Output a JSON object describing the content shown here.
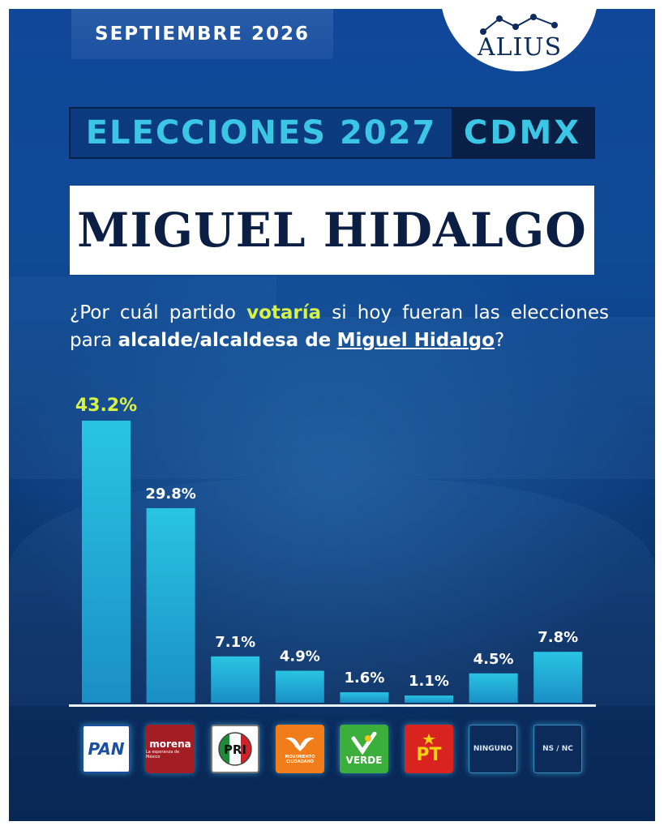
{
  "header": {
    "date": "SEPTIEMBRE 2026",
    "brand": "ALIUS"
  },
  "title": {
    "left": "ELECCIONES 2027",
    "right": "CDMX",
    "name": "MIGUEL HIDALGO"
  },
  "question": {
    "p1": "¿Por cuál partido ",
    "hl": "votaría",
    "p2": " si hoy fueran las elecciones para ",
    "b1": "alcalde/alcaldesa de",
    "p3": " ",
    "u1": "Miguel Hidalgo",
    "p4": "?"
  },
  "logos": {
    "pan": "PAN",
    "morena": "morena",
    "morena_sub": "La esperanza de México",
    "pri": "PRI",
    "mc": "MOVIMIENTO CIUDADANO",
    "verde": "VERDE",
    "pt": "PT",
    "ninguno": "NINGUNO",
    "nsnc": "NS / NC"
  },
  "colors": {
    "bar_top": "#29c4e3",
    "bar_bottom": "#1a8fc5",
    "label": "#ffffff",
    "highlight_label": "#d6f24a"
  },
  "chart_data": {
    "type": "bar",
    "categories": [
      "PAN",
      "morena",
      "PRI",
      "MOVIMIENTO CIUDADANO",
      "VERDE",
      "PT",
      "NINGUNO",
      "NS / NC"
    ],
    "values": [
      43.2,
      29.8,
      7.1,
      4.9,
      1.6,
      1.1,
      4.5,
      7.8
    ],
    "labels": [
      "43.2%",
      "29.8%",
      "7.1%",
      "4.9%",
      "1.6%",
      "1.1%",
      "4.5%",
      "7.8%"
    ],
    "ylim": [
      0,
      43.2
    ],
    "grid": false,
    "legend": "none"
  }
}
